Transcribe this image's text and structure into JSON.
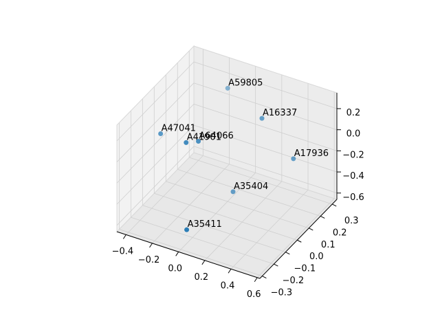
{
  "chart_data": {
    "type": "scatter3d",
    "series": [
      {
        "color": "#1f77b4",
        "labels": [
          "A59805",
          "A16337",
          "A47041",
          "A41901",
          "A64066",
          "A17936",
          "A35404",
          "A35411"
        ],
        "x": [
          -0.15,
          0.28,
          -0.43,
          -0.12,
          -0.08,
          0.52,
          0.06,
          0.0
        ],
        "y": [
          0.27,
          0.08,
          0.01,
          -0.12,
          -0.06,
          0.08,
          0.08,
          -0.25
        ],
        "z": [
          0.16,
          0.265,
          -0.09,
          0.1,
          0.06,
          -0.02,
          -0.52,
          -0.53
        ]
      }
    ],
    "xlim": [
      -0.47,
      0.62
    ],
    "ylim": [
      -0.32,
      0.34
    ],
    "zlim": [
      -0.66,
      0.35
    ],
    "xticks": [
      {
        "value": -0.4,
        "label": "−0.4"
      },
      {
        "value": -0.2,
        "label": "−0.2"
      },
      {
        "value": 0.0,
        "label": "0.0"
      },
      0.2,
      0.4,
      0.6
    ],
    "yticks": [
      {
        "value": -0.3,
        "label": "−0.3"
      },
      {
        "value": -0.2,
        "label": "−0.2"
      },
      {
        "value": -0.1,
        "label": "−0.1"
      },
      {
        "value": 0.0,
        "label": "0.0"
      },
      0.1,
      0.2,
      0.3
    ],
    "zticks": [
      {
        "value": -0.6,
        "label": "−0.6"
      },
      {
        "value": -0.4,
        "label": "−0.4"
      },
      {
        "value": -0.2,
        "label": "−0.2"
      },
      {
        "value": 0.0,
        "label": "0.0"
      },
      0.2
    ],
    "grid": true
  }
}
